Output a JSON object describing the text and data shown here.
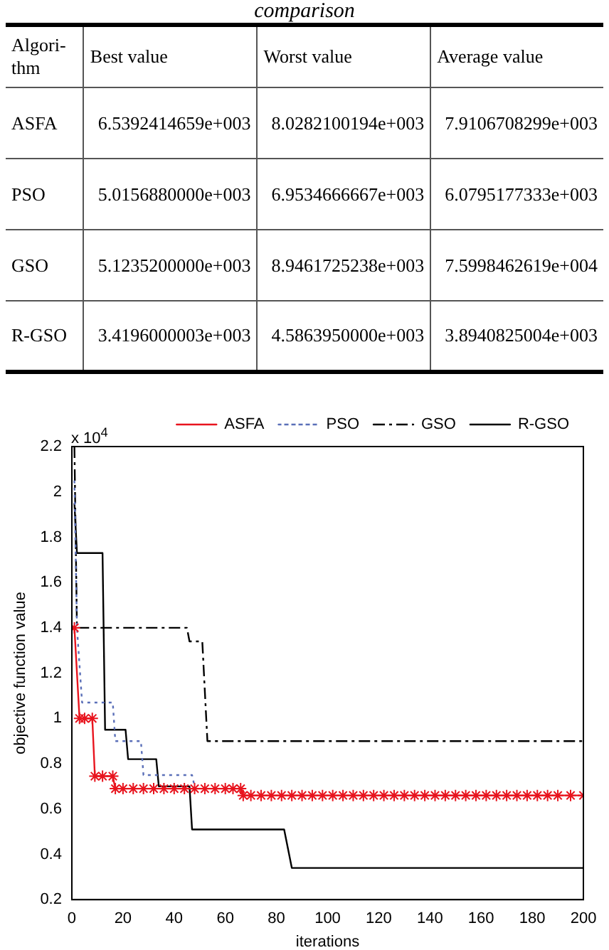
{
  "chart_data": [
    {
      "type": "other",
      "title": "comparison",
      "annotations": [
        "Algori-thm",
        "Best value",
        "Worst value",
        "Average value",
        "ASFA",
        "6.5392414659e+003",
        "8.0282100194e+003",
        "7.9106708299e+003",
        "PSO",
        "5.0156880000e+003",
        "6.9534666667e+003",
        "6.0795177333e+003",
        "GSO",
        "5.1235200000e+003",
        "8.9461725238e+003",
        "7.5998462619e+004",
        "R-GSO",
        "3.4196000003e+003",
        "4.5863950000e+003",
        "3.8940825004e+003"
      ]
    },
    {
      "type": "line",
      "xlabel": "iterations",
      "ylabel": "objective function value",
      "annotations": [
        "x 10$^{4}$"
      ],
      "series": [
        {
          "name": "ASFA",
          "color": "#e8141e",
          "marker": "cross",
          "line_style": "solid",
          "x": [
            1,
            3,
            5,
            8,
            9,
            12,
            16,
            17,
            20,
            24,
            28,
            32,
            36,
            40,
            44,
            48,
            52,
            56,
            60,
            63,
            66,
            67,
            70,
            74,
            78,
            82,
            86,
            90,
            94,
            98,
            102,
            106,
            110,
            114,
            118,
            122,
            126,
            130,
            134,
            138,
            142,
            146,
            150,
            154,
            158,
            162,
            166,
            170,
            174,
            178,
            182,
            186,
            190,
            195,
            200
          ],
          "values": [
            1.4,
            1.0,
            1.0,
            1.0,
            0.745,
            0.745,
            0.745,
            0.69,
            0.69,
            0.69,
            0.69,
            0.69,
            0.69,
            0.69,
            0.69,
            0.69,
            0.69,
            0.69,
            0.69,
            0.69,
            0.69,
            0.66,
            0.66,
            0.66,
            0.66,
            0.66,
            0.66,
            0.66,
            0.66,
            0.66,
            0.66,
            0.66,
            0.66,
            0.66,
            0.66,
            0.66,
            0.66,
            0.66,
            0.66,
            0.66,
            0.66,
            0.66,
            0.66,
            0.66,
            0.66,
            0.66,
            0.66,
            0.66,
            0.66,
            0.66,
            0.66,
            0.66,
            0.66,
            0.66,
            0.66
          ]
        },
        {
          "name": "PSO",
          "color": "#5a6fb8",
          "marker": "none",
          "line_style": "dotted",
          "x": [
            1,
            2,
            4,
            16,
            17,
            27,
            28,
            47,
            48
          ],
          "values": [
            2.05,
            1.4,
            1.07,
            1.07,
            0.9,
            0.9,
            0.75,
            0.75,
            0.7
          ]
        },
        {
          "name": "GSO",
          "color": "#000000",
          "marker": "none",
          "line_style": "dashed",
          "x": [
            1,
            2,
            45,
            46,
            51,
            53,
            200
          ],
          "values": [
            2.2,
            1.4,
            1.4,
            1.34,
            1.34,
            0.9,
            0.9
          ]
        },
        {
          "name": "R-GSO",
          "color": "#000000",
          "marker": "none",
          "line_style": "solid",
          "x": [
            1,
            2,
            12,
            13,
            21,
            22,
            33,
            34,
            46,
            47,
            83,
            86,
            200
          ],
          "values": [
            1.95,
            1.73,
            1.73,
            0.95,
            0.95,
            0.82,
            0.82,
            0.7,
            0.7,
            0.51,
            0.51,
            0.34,
            0.34
          ]
        }
      ],
      "xlim": [
        0,
        200
      ],
      "xticks": [
        0,
        20,
        40,
        60,
        80,
        100,
        120,
        140,
        160,
        180,
        200
      ],
      "ylim": [
        0.2,
        2.2
      ],
      "yticks": [
        0.2,
        0.4,
        0.6,
        0.8,
        1,
        1.2,
        1.4,
        1.6,
        1.8,
        2,
        2.2
      ],
      "grid": false,
      "legend": "top right"
    }
  ]
}
